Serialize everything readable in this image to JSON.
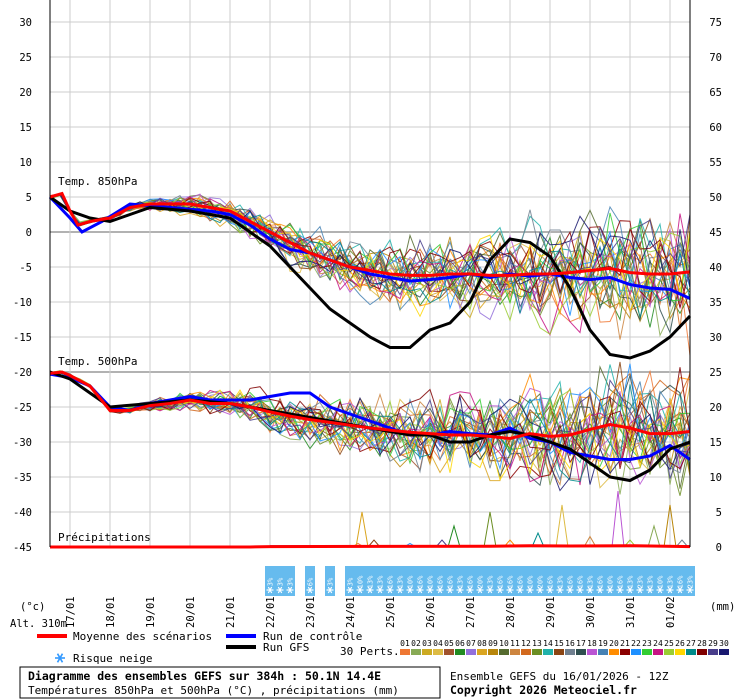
{
  "chart_data": {
    "type": "line",
    "title": "Diagramme des ensembles GEFS sur 384h : 50.1N 14.4E",
    "subtitle": "Températures 850hPa et 500hPa (°C) , précipitations (mm)",
    "left_axis": {
      "unit_label": "(°c)",
      "altitude_label": "Alt. 310m",
      "range": [
        -45,
        30
      ],
      "ticks": [
        "30",
        "25",
        "20",
        "15",
        "10",
        "5",
        "0",
        "-5",
        "-10",
        "-15",
        "-20",
        "-25",
        "-30",
        "-35",
        "-40",
        "-45"
      ]
    },
    "right_axis": {
      "unit_label": "(mm)",
      "range": [
        0,
        75
      ],
      "ticks": [
        "75",
        "70",
        "65",
        "60",
        "55",
        "50",
        "45",
        "40",
        "35",
        "30",
        "25",
        "20",
        "15",
        "10",
        "5",
        "0"
      ]
    },
    "x_labels": [
      "17/01",
      "18/01",
      "19/01",
      "20/01",
      "21/01",
      "22/01",
      "23/01",
      "24/01",
      "25/01",
      "26/01",
      "27/01",
      "28/01",
      "29/01",
      "30/01",
      "31/01",
      "01/02"
    ],
    "x_range": [
      16.5,
      32.5
    ],
    "panel_labels": {
      "t850": "Temp. 850hPa",
      "t500": "Temp. 500hPa",
      "precip": "Précipitations"
    },
    "series": [
      {
        "name": "Moyenne des scénarios",
        "color": "#ff0000",
        "t850": [
          [
            16.5,
            5
          ],
          [
            16.8,
            5.5
          ],
          [
            17.0,
            3
          ],
          [
            17.2,
            1
          ],
          [
            17.5,
            1.5
          ],
          [
            18.0,
            2
          ],
          [
            18.5,
            3.5
          ],
          [
            19.0,
            4
          ],
          [
            19.5,
            4
          ],
          [
            20.0,
            4
          ],
          [
            20.5,
            3.5
          ],
          [
            21.0,
            3
          ],
          [
            21.5,
            1.5
          ],
          [
            22.0,
            0
          ],
          [
            22.5,
            -1.5
          ],
          [
            23.0,
            -3
          ],
          [
            23.5,
            -4
          ],
          [
            24.0,
            -5
          ],
          [
            24.5,
            -5.5
          ],
          [
            25.0,
            -6
          ],
          [
            25.5,
            -6.2
          ],
          [
            26.0,
            -6.2
          ],
          [
            26.5,
            -6
          ],
          [
            27.0,
            -6
          ],
          [
            27.5,
            -6.2
          ],
          [
            28.0,
            -6.2
          ],
          [
            28.5,
            -6
          ],
          [
            29.0,
            -6
          ],
          [
            29.5,
            -5.8
          ],
          [
            30.0,
            -5.5
          ],
          [
            30.5,
            -5.2
          ],
          [
            31.0,
            -5.8
          ],
          [
            31.5,
            -6
          ],
          [
            32.0,
            -6
          ],
          [
            32.5,
            -5.7
          ]
        ],
        "t500": [
          [
            16.5,
            -20.2
          ],
          [
            16.8,
            -20
          ],
          [
            17.0,
            -20.5
          ],
          [
            17.5,
            -22
          ],
          [
            18.0,
            -25.5
          ],
          [
            18.5,
            -25.5
          ],
          [
            19.0,
            -24.8
          ],
          [
            19.5,
            -24.5
          ],
          [
            20.0,
            -24
          ],
          [
            20.5,
            -24.5
          ],
          [
            21.0,
            -24.5
          ],
          [
            21.5,
            -25
          ],
          [
            22.0,
            -25.7
          ],
          [
            22.5,
            -26.3
          ],
          [
            23.0,
            -26.8
          ],
          [
            23.5,
            -27.2
          ],
          [
            24.0,
            -27.6
          ],
          [
            24.5,
            -28
          ],
          [
            25.0,
            -28.3
          ],
          [
            25.5,
            -28.6
          ],
          [
            26.0,
            -28.8
          ],
          [
            26.5,
            -29
          ],
          [
            27.0,
            -29
          ],
          [
            27.5,
            -29.2
          ],
          [
            28.0,
            -29.5
          ],
          [
            28.5,
            -28.8
          ],
          [
            29.0,
            -29.2
          ],
          [
            29.5,
            -29
          ],
          [
            30.0,
            -28.2
          ],
          [
            30.5,
            -27.5
          ],
          [
            31.0,
            -28
          ],
          [
            31.5,
            -28.8
          ],
          [
            32.0,
            -28.8
          ],
          [
            32.5,
            -28.5
          ]
        ]
      },
      {
        "name": "Run de contrôle",
        "color": "#0000ff",
        "t850": [
          [
            16.5,
            5
          ],
          [
            17.0,
            2
          ],
          [
            17.3,
            0
          ],
          [
            17.8,
            1.5
          ],
          [
            18.5,
            4
          ],
          [
            19.5,
            3.5
          ],
          [
            20.5,
            3
          ],
          [
            21.0,
            2.5
          ],
          [
            21.5,
            1
          ],
          [
            22.0,
            -1
          ],
          [
            22.5,
            -2.5
          ],
          [
            23.0,
            -3
          ],
          [
            23.5,
            -4
          ],
          [
            24.0,
            -5
          ],
          [
            24.5,
            -6
          ],
          [
            25.0,
            -6.5
          ],
          [
            25.5,
            -7
          ],
          [
            26.0,
            -6.8
          ],
          [
            26.5,
            -6.5
          ],
          [
            27.0,
            -6
          ],
          [
            27.5,
            -6.5
          ],
          [
            28.0,
            -6
          ],
          [
            28.5,
            -6.3
          ],
          [
            29.0,
            -6
          ],
          [
            29.5,
            -6.5
          ],
          [
            30.0,
            -6.8
          ],
          [
            30.5,
            -6.5
          ],
          [
            31.0,
            -7.5
          ],
          [
            31.5,
            -8
          ],
          [
            32.0,
            -8.2
          ],
          [
            32.5,
            -9.5
          ]
        ],
        "t500": [
          [
            16.5,
            -20.3
          ],
          [
            17.0,
            -20.8
          ],
          [
            17.5,
            -22
          ],
          [
            18.0,
            -25
          ],
          [
            18.5,
            -25.5
          ],
          [
            19.0,
            -24.5
          ],
          [
            19.5,
            -24
          ],
          [
            20.0,
            -23.5
          ],
          [
            20.5,
            -24
          ],
          [
            21.0,
            -24
          ],
          [
            21.5,
            -24
          ],
          [
            22.0,
            -23.5
          ],
          [
            22.5,
            -23
          ],
          [
            23.0,
            -23
          ],
          [
            23.5,
            -25
          ],
          [
            24.0,
            -26
          ],
          [
            24.5,
            -27
          ],
          [
            25.0,
            -28
          ],
          [
            25.5,
            -29
          ],
          [
            26.0,
            -29
          ],
          [
            26.5,
            -28.5
          ],
          [
            27.0,
            -28.8
          ],
          [
            27.5,
            -29
          ],
          [
            28.0,
            -28
          ],
          [
            28.5,
            -29.5
          ],
          [
            29.0,
            -30
          ],
          [
            29.5,
            -31.5
          ],
          [
            30.0,
            -32
          ],
          [
            30.5,
            -32.5
          ],
          [
            31.0,
            -32.5
          ],
          [
            31.5,
            -32
          ],
          [
            32.0,
            -30.5
          ],
          [
            32.5,
            -32.5
          ]
        ]
      },
      {
        "name": "Run GFS",
        "color": "#000000",
        "t850": [
          [
            16.5,
            5
          ],
          [
            17.0,
            3
          ],
          [
            17.5,
            2
          ],
          [
            18.0,
            1.5
          ],
          [
            18.5,
            2.5
          ],
          [
            19.0,
            3.5
          ],
          [
            20.0,
            3
          ],
          [
            21.0,
            2
          ],
          [
            21.5,
            0
          ],
          [
            22.0,
            -2
          ],
          [
            22.5,
            -5
          ],
          [
            23.0,
            -8
          ],
          [
            23.5,
            -11
          ],
          [
            24.0,
            -13
          ],
          [
            24.5,
            -15
          ],
          [
            25.0,
            -16.5
          ],
          [
            25.5,
            -16.5
          ],
          [
            26.0,
            -14
          ],
          [
            26.5,
            -13
          ],
          [
            27.0,
            -10
          ],
          [
            27.5,
            -4
          ],
          [
            28.0,
            -1
          ],
          [
            28.5,
            -1.5
          ],
          [
            29.0,
            -3.5
          ],
          [
            29.5,
            -8
          ],
          [
            30.0,
            -14
          ],
          [
            30.5,
            -17.5
          ],
          [
            31.0,
            -18
          ],
          [
            31.5,
            -17
          ],
          [
            32.0,
            -15
          ],
          [
            32.5,
            -12
          ]
        ],
        "t500": [
          [
            16.5,
            -20
          ],
          [
            17.0,
            -21
          ],
          [
            17.5,
            -23
          ],
          [
            18.0,
            -25
          ],
          [
            19.0,
            -24.5
          ],
          [
            20.0,
            -24
          ],
          [
            21.0,
            -24.5
          ],
          [
            22.0,
            -25.5
          ],
          [
            23.0,
            -26.5
          ],
          [
            24.0,
            -27.5
          ],
          [
            25.0,
            -28.5
          ],
          [
            25.5,
            -29
          ],
          [
            26.0,
            -29
          ],
          [
            26.5,
            -30
          ],
          [
            27.0,
            -30
          ],
          [
            27.5,
            -29
          ],
          [
            28.0,
            -28.5
          ],
          [
            28.5,
            -29
          ],
          [
            29.0,
            -30
          ],
          [
            29.5,
            -31
          ],
          [
            30.0,
            -33
          ],
          [
            30.5,
            -35
          ],
          [
            31.0,
            -35.5
          ],
          [
            31.5,
            -34
          ],
          [
            32.0,
            -31
          ],
          [
            32.5,
            -30
          ]
        ]
      }
    ],
    "precip_mean": [
      [
        16.5,
        0
      ],
      [
        21.5,
        0
      ],
      [
        22.0,
        0.2
      ],
      [
        24.5,
        0.3
      ],
      [
        27.5,
        0.4
      ],
      [
        28.5,
        0.6
      ],
      [
        29.5,
        0.5
      ],
      [
        31.0,
        0.6
      ],
      [
        32.5,
        0.2
      ]
    ],
    "precip_peaks": [
      [
        24.2,
        0.5
      ],
      [
        24.3,
        5
      ],
      [
        24.6,
        1
      ],
      [
        25.5,
        0.5
      ],
      [
        26.3,
        1
      ],
      [
        26.6,
        3
      ],
      [
        27.5,
        5
      ],
      [
        28.0,
        1
      ],
      [
        28.7,
        2
      ],
      [
        29.3,
        6
      ],
      [
        30.0,
        1.5
      ],
      [
        30.7,
        8
      ],
      [
        31.0,
        1
      ],
      [
        31.6,
        3
      ],
      [
        32.0,
        6
      ],
      [
        32.3,
        1
      ]
    ],
    "snow_risk": {
      "legend": "Risque neige",
      "points": [
        {
          "x": 22.0,
          "pct": "3%"
        },
        {
          "x": 22.25,
          "pct": "3%"
        },
        {
          "x": 22.5,
          "pct": "3%"
        },
        {
          "x": 23.0,
          "pct": "6%"
        },
        {
          "x": 23.5,
          "pct": "3%"
        },
        {
          "x": 24.0,
          "pct": "3%"
        },
        {
          "x": 24.25,
          "pct": "10%"
        },
        {
          "x": 24.5,
          "pct": "13%"
        },
        {
          "x": 24.75,
          "pct": "13%"
        },
        {
          "x": 25.0,
          "pct": "16%"
        },
        {
          "x": 25.25,
          "pct": "13%"
        },
        {
          "x": 25.5,
          "pct": "10%"
        },
        {
          "x": 25.75,
          "pct": "16%"
        },
        {
          "x": 26.0,
          "pct": "10%"
        },
        {
          "x": 26.25,
          "pct": "16%"
        },
        {
          "x": 26.5,
          "pct": "16%"
        },
        {
          "x": 26.75,
          "pct": "13%"
        },
        {
          "x": 27.0,
          "pct": "16%"
        },
        {
          "x": 27.25,
          "pct": "20%"
        },
        {
          "x": 27.5,
          "pct": "13%"
        },
        {
          "x": 27.75,
          "pct": "16%"
        },
        {
          "x": 28.0,
          "pct": "16%"
        },
        {
          "x": 28.25,
          "pct": "16%"
        },
        {
          "x": 28.5,
          "pct": "10%"
        },
        {
          "x": 28.75,
          "pct": "20%"
        },
        {
          "x": 29.0,
          "pct": "16%"
        },
        {
          "x": 29.25,
          "pct": "13%"
        },
        {
          "x": 29.5,
          "pct": "16%"
        },
        {
          "x": 29.75,
          "pct": "16%"
        },
        {
          "x": 30.0,
          "pct": "13%"
        },
        {
          "x": 30.25,
          "pct": "16%"
        },
        {
          "x": 30.5,
          "pct": "10%"
        },
        {
          "x": 30.75,
          "pct": "16%"
        },
        {
          "x": 31.0,
          "pct": "13%"
        },
        {
          "x": 31.25,
          "pct": "23%"
        },
        {
          "x": 31.5,
          "pct": "13%"
        },
        {
          "x": 31.75,
          "pct": "10%"
        },
        {
          "x": 32.0,
          "pct": "13%"
        },
        {
          "x": 32.25,
          "pct": "16%"
        },
        {
          "x": 32.5,
          "pct": "23%"
        }
      ]
    },
    "perturbations": {
      "label": "30 Perts.",
      "ids": [
        "01",
        "02",
        "03",
        "04",
        "05",
        "06",
        "07",
        "08",
        "09",
        "10",
        "11",
        "12",
        "13",
        "14",
        "15",
        "16",
        "17",
        "18",
        "19",
        "20",
        "21",
        "22",
        "23",
        "24",
        "25",
        "26",
        "27",
        "28",
        "29",
        "30"
      ],
      "colors": [
        "#ee7733",
        "#88aa55",
        "#ccaa22",
        "#ddbb44",
        "#a0522d",
        "#228b22",
        "#9370db",
        "#daa520",
        "#b8860b",
        "#556b2f",
        "#cd853f",
        "#d2691e",
        "#6b8e23",
        "#20b2aa",
        "#8b4513",
        "#708090",
        "#2f4f4f",
        "#ba55d3",
        "#4682b4",
        "#ff8c00",
        "#8b0000",
        "#1e90ff",
        "#32cd32",
        "#c71585",
        "#9acd32",
        "#ffd700",
        "#008b8b",
        "#800000",
        "#483d8b",
        "#191970"
      ]
    },
    "legend": {
      "mean": "Moyenne des scénarios",
      "control": "Run de contrôle",
      "gfs": "Run GFS",
      "snow": "Risque neige",
      "placement": "bottom"
    },
    "grid": true
  },
  "footer": {
    "title": "Diagramme des ensembles GEFS sur 384h : 50.1N 14.4E",
    "subtitle": "Températures 850hPa et 500hPa (°C) , précipitations (mm)",
    "run": "Ensemble GEFS du 16/01/2026 - 12Z",
    "copyright": "Copyright 2026 Meteociel.fr"
  }
}
